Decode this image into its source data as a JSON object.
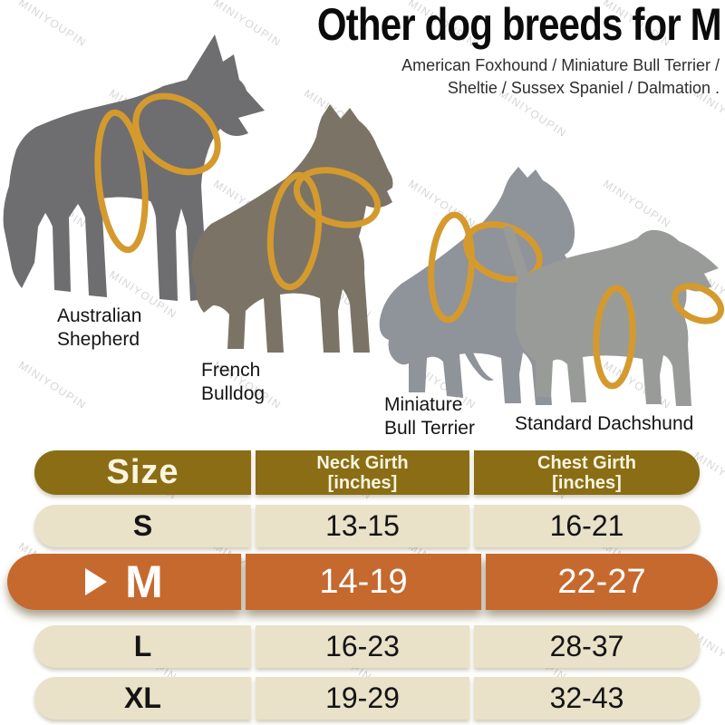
{
  "title": "Other dog breeds for M",
  "subtitle": {
    "line1": "American Foxhound / Miniature Bull Terrier /",
    "line2": "Sheltie / Sussex Spaniel / Dalmation ."
  },
  "watermark_text": "MINIYOUPIN",
  "harness": {
    "color": "#d59a2d"
  },
  "dogs": [
    {
      "id": "australian-shepherd",
      "label_line1": "Australian",
      "label_line2": "Shepherd",
      "color": "#6e6e70"
    },
    {
      "id": "french-bulldog",
      "label_line1": "French",
      "label_line2": "Bulldog",
      "color": "#7b7466"
    },
    {
      "id": "miniature-bull-terrier",
      "label_line1": "Miniature",
      "label_line2": "Bull Terrier",
      "color": "#8f939a"
    },
    {
      "id": "standard-dachshund",
      "label_line1": "Standard Dachshund",
      "label_line2": "",
      "color": "#999b99"
    }
  ],
  "size_chart": {
    "columns": {
      "size": "Size",
      "neck_line1": "Neck Girth",
      "neck_line2": "[inches]",
      "chest_line1": "Chest Girth",
      "chest_line2": "[inches]"
    },
    "rows": [
      {
        "size": "S",
        "neck": "13-15",
        "chest": "16-21"
      },
      {
        "size": "M",
        "neck": "14-19",
        "chest": "22-27"
      },
      {
        "size": "L",
        "neck": "16-23",
        "chest": "28-37"
      },
      {
        "size": "XL",
        "neck": "19-29",
        "chest": "32-43"
      }
    ],
    "highlighted_size": "M",
    "colors": {
      "header_bg": "#8a6d15",
      "header_text": "#faf5e0",
      "row_bg": "#e9e1c8",
      "row_text": "#141414",
      "highlight_bg": "#c5692f",
      "highlight_text": "#ffffff"
    }
  }
}
